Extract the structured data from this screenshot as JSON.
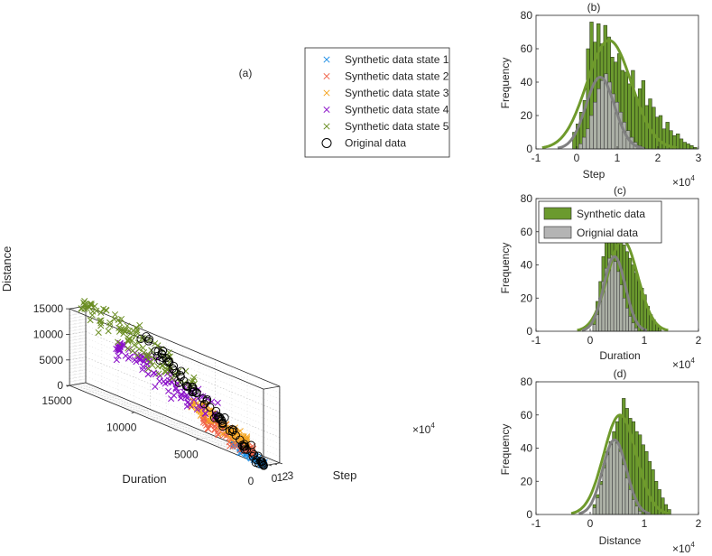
{
  "colors": {
    "state1": "#1f8fe6",
    "state2": "#f0644a",
    "state3": "#f5a623",
    "state4": "#8a10c8",
    "state5": "#6b8e23",
    "original": "#000000",
    "synthetic_bar": "#6b9a2e",
    "synthetic_curve": "#6f9a2c",
    "original_bar": "#b4b4b4",
    "original_curve": "#808080"
  },
  "chart_data": [
    {
      "type": "scatter",
      "panel": "a",
      "title": "(a)",
      "projection": "3d",
      "axes": {
        "step": {
          "label": "Step",
          "range": [
            0,
            30000
          ],
          "ticks": [
            0,
            10000,
            20000,
            30000
          ],
          "tick_labels": [
            "0",
            "1",
            "2",
            "3"
          ],
          "exponent_label": "×10",
          "exponent": "4"
        },
        "duration": {
          "label": "Duration",
          "range": [
            0,
            15000
          ],
          "ticks": [
            0,
            5000,
            10000,
            15000
          ],
          "tick_labels": [
            "0",
            "5000",
            "10000",
            "15000"
          ]
        },
        "distance": {
          "label": "Distance",
          "range": [
            0,
            15000
          ],
          "ticks": [
            0,
            5000,
            10000,
            15000
          ],
          "tick_labels": [
            "0",
            "5000",
            "10000",
            "15000"
          ]
        }
      },
      "grid": true,
      "legend_position": "top-right",
      "legend": [
        {
          "label": "Synthetic data state 1",
          "marker": "x",
          "color_key": "state1"
        },
        {
          "label": "Synthetic data state 2",
          "marker": "x",
          "color_key": "state2"
        },
        {
          "label": "Synthetic data state 3",
          "marker": "x",
          "color_key": "state3"
        },
        {
          "label": "Synthetic data state 4",
          "marker": "x",
          "color_key": "state4"
        },
        {
          "label": "Synthetic data state 5",
          "marker": "x",
          "color_key": "state5"
        },
        {
          "label": "Original data",
          "marker": "o",
          "color_key": "original"
        }
      ],
      "series": [
        {
          "name": "Synthetic data state 1",
          "color_key": "state1",
          "count": 90,
          "step_range": [
            0,
            6000
          ],
          "duration_range": [
            0,
            2500
          ],
          "distance_range": [
            0,
            2000
          ]
        },
        {
          "name": "Synthetic data state 2",
          "color_key": "state2",
          "count": 90,
          "step_range": [
            2000,
            10000
          ],
          "duration_range": [
            1000,
            5000
          ],
          "distance_range": [
            1000,
            4500
          ]
        },
        {
          "name": "Synthetic data state 3",
          "color_key": "state3",
          "count": 90,
          "step_range": [
            4000,
            14000
          ],
          "duration_range": [
            1500,
            6000
          ],
          "distance_range": [
            2500,
            6500
          ]
        },
        {
          "name": "Synthetic data state 4",
          "color_key": "state4",
          "count": 110,
          "step_range": [
            6000,
            22000
          ],
          "duration_range": [
            4000,
            12000
          ],
          "distance_range": [
            5000,
            11000
          ]
        },
        {
          "name": "Synthetic data state 5",
          "color_key": "state5",
          "count": 110,
          "step_range": [
            8000,
            28000
          ],
          "duration_range": [
            6000,
            15000
          ],
          "distance_range": [
            9000,
            16000
          ]
        },
        {
          "name": "Original data",
          "color_key": "original",
          "count": 85,
          "step_range": [
            0,
            24000
          ],
          "duration_range": [
            0,
            13000
          ],
          "distance_range": [
            0,
            14500
          ]
        }
      ]
    },
    {
      "type": "histogram",
      "panel": "b",
      "title": "(b)",
      "xlabel": "Step",
      "ylabel": "Frequency",
      "xlim": [
        -1,
        3
      ],
      "ylim": [
        0,
        80
      ],
      "xticks": [
        -1,
        0,
        1,
        2,
        3
      ],
      "yticks": [
        0,
        20,
        40,
        60,
        80
      ],
      "x_multiplier": "×10",
      "x_exponent": "4",
      "synthetic_counts": [
        10,
        15,
        22,
        29,
        60,
        76,
        64,
        75,
        63,
        74,
        67,
        55,
        52,
        57,
        47,
        46,
        39,
        47,
        31,
        36,
        41,
        26,
        30,
        25,
        19,
        20,
        12,
        16,
        11,
        8,
        9,
        6,
        4,
        3,
        2,
        1
      ],
      "synthetic_bin_start": -0.1,
      "synthetic_bin_width": 0.085,
      "original_counts": [
        3,
        7,
        12,
        20,
        28,
        36,
        41,
        45,
        40,
        33,
        28,
        22,
        16,
        11,
        7,
        4,
        2,
        1
      ],
      "original_bin_start": 0.05,
      "original_bin_width": 0.09,
      "synthetic_fit": {
        "mean": 0.8,
        "sd": 0.55,
        "peak": 65
      },
      "original_fit": {
        "mean": 0.58,
        "sd": 0.35,
        "peak": 43
      }
    },
    {
      "type": "histogram",
      "panel": "c",
      "title": "(c)",
      "xlabel": "Duration",
      "ylabel": "Frequency",
      "xlim": [
        -1,
        2
      ],
      "ylim": [
        0,
        80
      ],
      "xticks": [
        -1,
        0,
        1,
        2
      ],
      "yticks": [
        0,
        20,
        40,
        60,
        80
      ],
      "x_multiplier": "×10",
      "x_exponent": "4",
      "legend_position": "top-left",
      "legend": [
        {
          "label": "Synthetic data",
          "color_key": "synthetic_bar"
        },
        {
          "label": "Orignial data",
          "color_key": "original_bar"
        }
      ],
      "synthetic_counts": [
        8,
        18,
        30,
        45,
        58,
        62,
        70,
        66,
        60,
        55,
        52,
        48,
        44,
        40,
        35,
        30,
        26,
        22,
        15,
        10,
        7,
        4,
        2
      ],
      "synthetic_bin_start": 0.05,
      "synthetic_bin_width": 0.055,
      "original_counts": [
        4,
        10,
        20,
        30,
        38,
        44,
        46,
        42,
        36,
        28,
        20,
        14,
        9,
        5,
        2
      ],
      "original_bin_start": 0.05,
      "original_bin_width": 0.055,
      "synthetic_fit": {
        "mean": 0.6,
        "sd": 0.28,
        "peak": 55
      },
      "original_fit": {
        "mean": 0.45,
        "sd": 0.2,
        "peak": 45
      }
    },
    {
      "type": "histogram",
      "panel": "d",
      "title": "(d)",
      "xlabel": "Distance",
      "ylabel": "Frequency",
      "xlim": [
        -1,
        2
      ],
      "ylim": [
        0,
        80
      ],
      "xticks": [
        -1,
        0,
        1,
        2
      ],
      "yticks": [
        0,
        20,
        40,
        60,
        80
      ],
      "x_multiplier": "×10",
      "x_exponent": "4",
      "synthetic_counts": [
        6,
        12,
        20,
        30,
        38,
        44,
        50,
        56,
        60,
        70,
        64,
        58,
        56,
        50,
        48,
        42,
        38,
        32,
        27,
        20,
        15,
        10,
        6,
        3
      ],
      "synthetic_bin_start": 0.05,
      "synthetic_bin_width": 0.06,
      "original_counts": [
        4,
        10,
        18,
        28,
        36,
        42,
        45,
        43,
        38,
        30,
        22,
        15,
        9,
        5,
        2
      ],
      "original_bin_start": 0.05,
      "original_bin_width": 0.06,
      "synthetic_fit": {
        "mean": 0.55,
        "sd": 0.3,
        "peak": 60
      },
      "original_fit": {
        "mean": 0.45,
        "sd": 0.22,
        "peak": 45
      }
    }
  ]
}
